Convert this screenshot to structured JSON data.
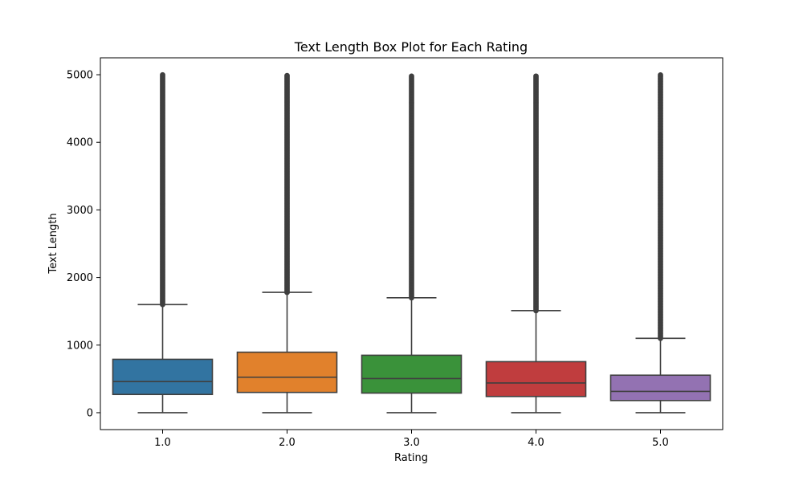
{
  "chart_data": {
    "type": "box",
    "title": "Text Length Box Plot for Each Rating",
    "xlabel": "Rating",
    "ylabel": "Text Length",
    "categories": [
      "1.0",
      "2.0",
      "3.0",
      "4.0",
      "5.0"
    ],
    "ylim": [
      -250,
      5250
    ],
    "yticks": [
      0,
      1000,
      2000,
      3000,
      4000,
      5000
    ],
    "ytick_labels": [
      "0",
      "1000",
      "2000",
      "3000",
      "4000",
      "5000"
    ],
    "boxes": [
      {
        "category": "1.0",
        "min": 0,
        "q1": 270,
        "median": 460,
        "q3": 790,
        "max": 1600,
        "outliers_from": 1600,
        "outliers_to": 5000,
        "color": "#3274a1"
      },
      {
        "category": "2.0",
        "min": 0,
        "q1": 300,
        "median": 525,
        "q3": 895,
        "max": 1780,
        "outliers_from": 1780,
        "outliers_to": 5000,
        "color": "#e1812c"
      },
      {
        "category": "3.0",
        "min": 0,
        "q1": 290,
        "median": 505,
        "q3": 850,
        "max": 1700,
        "outliers_from": 1700,
        "outliers_to": 5000,
        "color": "#3a923a"
      },
      {
        "category": "4.0",
        "min": 0,
        "q1": 240,
        "median": 440,
        "q3": 755,
        "max": 1510,
        "outliers_from": 1510,
        "outliers_to": 5000,
        "color": "#c03d3e"
      },
      {
        "category": "5.0",
        "min": 0,
        "q1": 180,
        "median": 315,
        "q3": 555,
        "max": 1100,
        "outliers_from": 1100,
        "outliers_to": 5000,
        "color": "#9372b2"
      }
    ],
    "line_color": "#3f3f3f",
    "grid": false,
    "legend": "none"
  }
}
